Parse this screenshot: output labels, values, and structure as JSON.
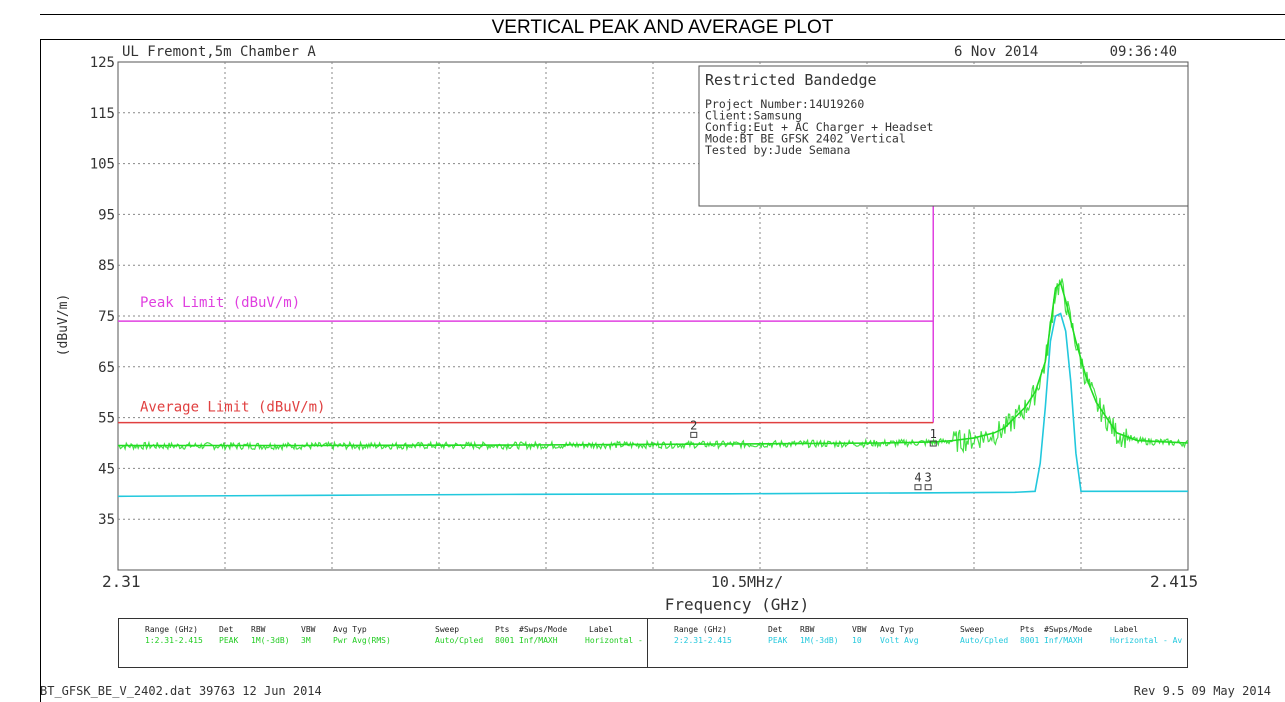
{
  "page_title": "VERTICAL PEAK AND AVERAGE PLOT",
  "colors": {
    "peak_trace": "#22dd22",
    "avg_trace": "#22c8dd",
    "peak_limit": "#e040e0",
    "avg_limit": "#e04040",
    "grid": "#888888",
    "frame": "#555555"
  },
  "chart_data": {
    "type": "line",
    "header_left": "UL Fremont,5m Chamber A",
    "header_date": "6 Nov 2014",
    "header_time": "09:36:40",
    "ylabel": "(dBuV/m)",
    "xlabel": "Frequency (GHz)",
    "x_start_label": "2.31",
    "x_end_label": "2.415",
    "x_div_label": "10.5MHz/",
    "xlim": [
      2.31,
      2.415
    ],
    "ylim": [
      25,
      125
    ],
    "y_ticks": [
      125,
      115,
      105,
      95,
      85,
      75,
      65,
      55,
      45,
      35
    ],
    "y_tick_labels": [
      "125",
      "115",
      "105",
      "95",
      "85",
      "75",
      "65",
      "55",
      "45",
      "35"
    ],
    "grid": true,
    "info_box": {
      "title": "Restricted Bandedge",
      "lines": [
        "Project Number:14U19260",
        "Client:Samsung",
        "Config:Eut + AC Charger + Headset",
        "Mode:BT BE GFSK 2402 Vertical",
        "Tested by:Jude Semana"
      ]
    },
    "limits": [
      {
        "name": "Peak Limit (dBuV/m)",
        "value": 74,
        "x_end": 2.39
      },
      {
        "name": "Average Limit (dBuV/m)",
        "value": 54,
        "x_end": 2.39
      }
    ],
    "restricted_band_edge": 2.39,
    "series": [
      {
        "x": [
          2.31,
          2.33,
          2.35,
          2.37,
          2.385,
          2.39,
          2.392,
          2.394,
          2.396,
          2.397,
          2.398,
          2.399,
          2.4,
          2.401,
          2.4015,
          2.402,
          2.4025,
          2.403,
          2.404,
          2.405,
          2.406,
          2.407,
          2.408,
          2.41,
          2.415
        ],
        "y": [
          49.5,
          49.5,
          49.6,
          49.8,
          50,
          50.2,
          50.5,
          51,
          52,
          53,
          55,
          57,
          60,
          66,
          73,
          80.5,
          81.5,
          78,
          70,
          63,
          58,
          55,
          52,
          50.5,
          50
        ]
      },
      {
        "x": [
          2.31,
          2.33,
          2.35,
          2.37,
          2.39,
          2.398,
          2.4,
          2.4005,
          2.401,
          2.4015,
          2.402,
          2.4025,
          2.403,
          2.4035,
          2.404,
          2.4045,
          2.415
        ],
        "y": [
          39.5,
          39.7,
          39.9,
          40,
          40.2,
          40.3,
          40.5,
          46,
          57,
          70,
          75,
          75.5,
          72,
          62,
          48,
          40.5,
          40.5
        ]
      }
    ],
    "markers": [
      {
        "label": "1",
        "x": 2.39,
        "y": 49.8
      },
      {
        "label": "2",
        "x": 2.3665,
        "y": 51.5
      },
      {
        "label": "4",
        "x": 2.3885,
        "y": 41.2
      },
      {
        "label": "3",
        "x": 2.3895,
        "y": 41.2
      }
    ]
  },
  "legend": {
    "headers": [
      "Range (GHz)",
      "Det",
      "RBW",
      "VBW",
      "Avg Typ",
      "Sweep",
      "Pts",
      "#Swps/Mode",
      "Label"
    ],
    "row1": [
      "1:2.31-2.415",
      "PEAK",
      "1M(-3dB)",
      "3M",
      "Pwr Avg(RMS)",
      "Auto/Cpled",
      "8001",
      "Inf/MAXH",
      "Horizontal -"
    ],
    "row2": [
      "2:2.31-2.415",
      "PEAK",
      "1M(-3dB)",
      "10",
      "Volt Avg",
      "Auto/Cpled",
      "8001",
      "Inf/MAXH",
      "Horizontal - Av"
    ]
  },
  "footer_left": "BT_GFSK_BE_V_2402.dat 39763 12 Jun 2014",
  "footer_right": "Rev 9.5 09 May 2014"
}
